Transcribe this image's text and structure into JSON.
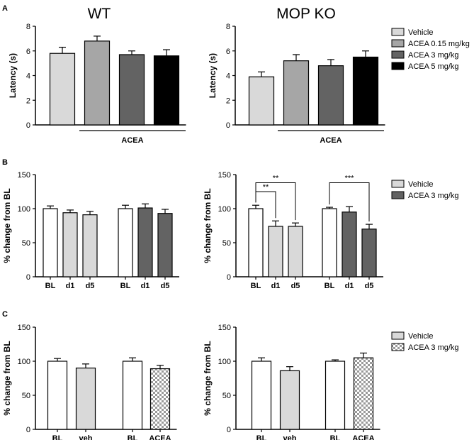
{
  "panels": {
    "A": "A",
    "B": "B",
    "C": "C"
  },
  "colors": {
    "vehicle": "#d9d9d9",
    "acea_015": "#a6a6a6",
    "acea_3": "#636363",
    "acea_5": "#000000",
    "bl": "#ffffff"
  },
  "chart_data": [
    {
      "id": "A-WT",
      "type": "bar",
      "title": "WT",
      "ylabel": "Latency (s)",
      "ylim": [
        0,
        8
      ],
      "yticks": [
        "0",
        "2",
        "4",
        "6",
        "8"
      ],
      "categories": [
        "Vehicle",
        "ACEA 0.15 mg/kg",
        "ACEA 3 mg/kg",
        "ACEA 5 mg/kg"
      ],
      "values": [
        5.8,
        6.8,
        5.7,
        5.6
      ],
      "errors": [
        0.5,
        0.4,
        0.3,
        0.5
      ],
      "group_label": "ACEA"
    },
    {
      "id": "A-KO",
      "type": "bar",
      "title": "MOP KO",
      "ylabel": "Latency (s)",
      "ylim": [
        0,
        8
      ],
      "yticks": [
        "0",
        "2",
        "4",
        "6",
        "8"
      ],
      "categories": [
        "Vehicle",
        "ACEA 0.15 mg/kg",
        "ACEA 3 mg/kg",
        "ACEA 5 mg/kg"
      ],
      "values": [
        3.9,
        5.2,
        4.8,
        5.5
      ],
      "errors": [
        0.4,
        0.5,
        0.5,
        0.5
      ],
      "group_label": "ACEA",
      "legend": [
        "Vehicle",
        "ACEA 0.15 mg/kg",
        "ACEA 3 mg/kg",
        "ACEA 5 mg/kg"
      ]
    },
    {
      "id": "B-WT",
      "type": "bar",
      "ylabel": "% change from BL",
      "ylim": [
        0,
        150
      ],
      "yticks": [
        "0",
        "50",
        "100",
        "150"
      ],
      "categories": [
        "BL",
        "d1",
        "d5",
        "BL",
        "d1",
        "d5"
      ],
      "series_groups": [
        "vehicle",
        "vehicle",
        "vehicle",
        "acea",
        "acea",
        "acea"
      ],
      "values": [
        100,
        94,
        91,
        100,
        101,
        93
      ],
      "errors": [
        4,
        4,
        5,
        5,
        6,
        6
      ]
    },
    {
      "id": "B-KO",
      "type": "bar",
      "ylabel": "% change from BL",
      "ylim": [
        0,
        150
      ],
      "yticks": [
        "0",
        "50",
        "100",
        "150"
      ],
      "categories": [
        "BL",
        "d1",
        "d5",
        "BL",
        "d1",
        "d5"
      ],
      "series_groups": [
        "vehicle",
        "vehicle",
        "vehicle",
        "acea",
        "acea",
        "acea"
      ],
      "values": [
        100,
        74,
        74,
        100,
        95,
        70
      ],
      "errors": [
        5,
        8,
        5,
        2,
        8,
        7
      ],
      "annotations": [
        {
          "text": "**",
          "from": 0,
          "to": 1,
          "level": 125
        },
        {
          "text": "**",
          "from": 0,
          "to": 2,
          "level": 138
        },
        {
          "text": "***",
          "from": 3,
          "to": 5,
          "level": 138
        }
      ],
      "legend": [
        "Vehicle",
        "ACEA 3 mg/kg"
      ]
    },
    {
      "id": "C-WT",
      "type": "bar",
      "ylabel": "% change from BL",
      "ylim": [
        0,
        150
      ],
      "yticks": [
        "0",
        "50",
        "100",
        "150"
      ],
      "categories": [
        "BL",
        "veh",
        "BL",
        "ACEA"
      ],
      "series_groups": [
        "bl",
        "vehicle",
        "bl",
        "acea"
      ],
      "values": [
        100,
        90,
        100,
        89
      ],
      "errors": [
        4,
        6,
        5,
        5
      ]
    },
    {
      "id": "C-KO",
      "type": "bar",
      "ylabel": "% change from BL",
      "ylim": [
        0,
        150
      ],
      "yticks": [
        "0",
        "50",
        "100",
        "150"
      ],
      "categories": [
        "BL",
        "veh",
        "BL",
        "ACEA"
      ],
      "series_groups": [
        "bl",
        "vehicle",
        "bl",
        "acea"
      ],
      "values": [
        100,
        86,
        100,
        105
      ],
      "errors": [
        5,
        6,
        2,
        7
      ],
      "legend": [
        "Vehicle",
        "ACEA 3 mg/kg"
      ]
    }
  ]
}
